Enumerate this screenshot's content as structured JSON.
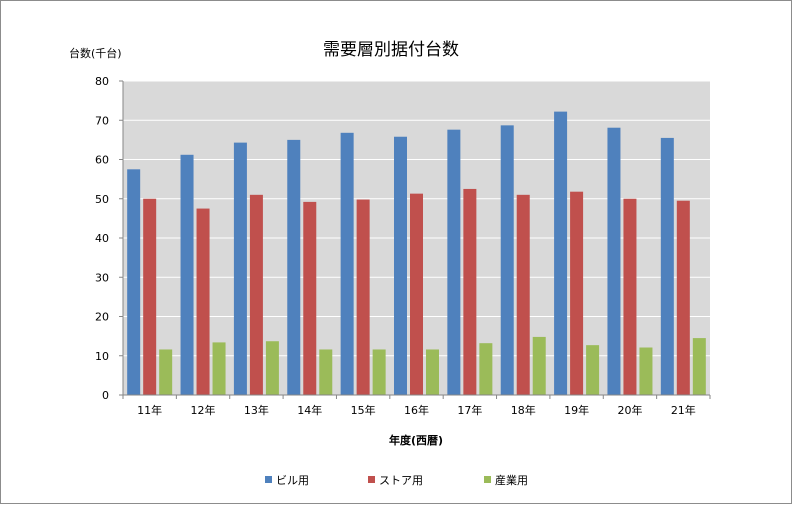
{
  "chart_data": {
    "type": "bar",
    "title": "需要層別据付台数",
    "ylabel": "台数(千台)",
    "xlabel": "年度(西暦)",
    "categories": [
      "11年",
      "12年",
      "13年",
      "14年",
      "15年",
      "16年",
      "17年",
      "18年",
      "19年",
      "20年",
      "21年"
    ],
    "ylim": [
      0,
      80
    ],
    "yticks": [
      0,
      10,
      20,
      30,
      40,
      50,
      60,
      70,
      80
    ],
    "grid": true,
    "legend_position": "bottom",
    "series": [
      {
        "name": "ビル用",
        "color": "#4f81bd",
        "values": [
          57.5,
          61.2,
          64.3,
          65.0,
          66.8,
          65.8,
          67.6,
          68.7,
          72.2,
          68.1,
          65.5
        ]
      },
      {
        "name": "ストア用",
        "color": "#c0504d",
        "values": [
          50.0,
          47.5,
          51.0,
          49.2,
          49.8,
          51.3,
          52.5,
          51.0,
          51.8,
          50.0,
          49.5
        ]
      },
      {
        "name": "産業用",
        "color": "#9bbb59",
        "values": [
          11.6,
          13.4,
          13.7,
          11.6,
          11.6,
          11.6,
          13.2,
          14.8,
          12.7,
          12.1,
          14.5
        ]
      }
    ]
  }
}
